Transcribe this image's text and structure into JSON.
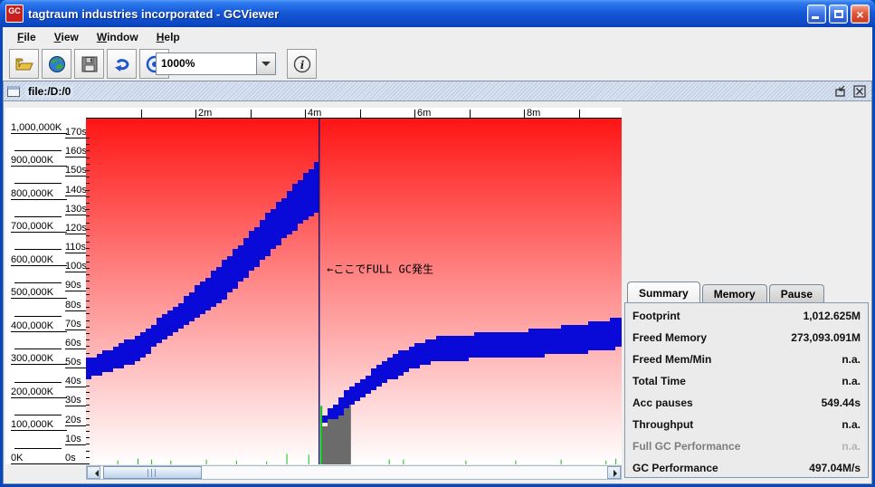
{
  "window": {
    "title": "tagtraum industries incorporated - GCViewer",
    "logo_text": "GC",
    "controls": {
      "minimize": "minimize",
      "maximize": "maximize",
      "close": "close"
    }
  },
  "menu": {
    "items": [
      {
        "label": "File",
        "mnemonic": "F"
      },
      {
        "label": "View",
        "mnemonic": "V"
      },
      {
        "label": "Window",
        "mnemonic": "W"
      },
      {
        "label": "Help",
        "mnemonic": "H"
      }
    ]
  },
  "toolbar": {
    "zoom_value": "1000%",
    "icons": [
      "open-folder-icon",
      "globe-icon",
      "save-icon",
      "refresh-icon",
      "watch-icon",
      "info-icon"
    ]
  },
  "frame": {
    "title": "file:/D:/0"
  },
  "tabs": [
    {
      "label": "Summary",
      "selected": true
    },
    {
      "label": "Memory",
      "selected": false
    },
    {
      "label": "Pause",
      "selected": false
    }
  ],
  "summary": {
    "rows": [
      {
        "label": "Footprint",
        "value": "1,012.625M",
        "muted": false
      },
      {
        "label": "Freed Memory",
        "value": "273,093.091M",
        "muted": false
      },
      {
        "label": "Freed Mem/Min",
        "value": "n.a.",
        "muted": false
      },
      {
        "label": "Total Time",
        "value": "n.a.",
        "muted": false
      },
      {
        "label": "Acc pauses",
        "value": "549.44s",
        "muted": false
      },
      {
        "label": "Throughput",
        "value": "n.a.",
        "muted": false
      },
      {
        "label": "Full GC Performance",
        "value": "n.a.",
        "muted": true
      },
      {
        "label": "GC Performance",
        "value": "497.04M/s",
        "muted": false
      }
    ]
  },
  "chart_data": {
    "type": "area",
    "x_axis": {
      "unit": "minutes",
      "range": [
        0,
        9.8
      ],
      "ticks": [
        {
          "m": 1,
          "label": ""
        },
        {
          "m": 2,
          "label": "2m"
        },
        {
          "m": 3,
          "label": ""
        },
        {
          "m": 4,
          "label": "4m"
        },
        {
          "m": 5,
          "label": ""
        },
        {
          "m": 6,
          "label": "6m"
        },
        {
          "m": 7,
          "label": ""
        },
        {
          "m": 8,
          "label": "8m"
        },
        {
          "m": 9,
          "label": ""
        }
      ]
    },
    "y_axis_memory": {
      "min_k": 0,
      "max_k": 1000000,
      "step_k": 100000,
      "labels": [
        "1,000,000K",
        "900,000K",
        "800,000K",
        "700,000K",
        "600,000K",
        "500,000K",
        "400,000K",
        "300,000K",
        "200,000K",
        "100,000K",
        "0K"
      ]
    },
    "y_axis_seconds": {
      "min_s": 0,
      "max_s": 170,
      "step_s": 10,
      "labels": [
        "170s",
        "160s",
        "150s",
        "140s",
        "130s",
        "120s",
        "110s",
        "100s",
        "90s",
        "80s",
        "70s",
        "60s",
        "50s",
        "40s",
        "30s",
        "20s",
        "10s",
        "0s"
      ]
    },
    "series": [
      {
        "name": "heap-band-before-full-gc",
        "color": "#0909D8",
        "top_mk": [
          [
            0,
            320000
          ],
          [
            0.91,
            389000
          ],
          [
            1.74,
            498000
          ],
          [
            2.56,
            629000
          ],
          [
            3.39,
            777000
          ],
          [
            3.88,
            865000
          ],
          [
            4.21,
            920000
          ],
          [
            4.26,
            930000
          ]
        ],
        "bottom_mk": [
          [
            0,
            257000
          ],
          [
            0.91,
            307000
          ],
          [
            1.74,
            402000
          ],
          [
            2.56,
            498000
          ],
          [
            3.39,
            635000
          ],
          [
            3.88,
            712000
          ],
          [
            4.21,
            758000
          ],
          [
            4.26,
            766000
          ]
        ]
      },
      {
        "name": "heap-band-after-full-gc",
        "color": "#0909D8",
        "top_mk": [
          [
            4.314,
            148000
          ],
          [
            4.71,
            219000
          ],
          [
            5.37,
            307000
          ],
          [
            5.87,
            356000
          ],
          [
            6.36,
            383000
          ],
          [
            7.02,
            394000
          ],
          [
            7.69,
            400000
          ],
          [
            8.35,
            410000
          ],
          [
            9.17,
            427000
          ],
          [
            9.79,
            449000
          ]
        ],
        "bottom_mk": [
          [
            4.314,
            110000
          ],
          [
            4.71,
            153000
          ],
          [
            5.37,
            230000
          ],
          [
            5.87,
            279000
          ],
          [
            6.36,
            307000
          ],
          [
            7.02,
            317000
          ],
          [
            7.69,
            323000
          ],
          [
            8.35,
            328000
          ],
          [
            9.17,
            339000
          ],
          [
            9.79,
            353000
          ]
        ]
      },
      {
        "name": "used-heap-after-full-gc",
        "color": "#6B6B6B",
        "top_mk": [
          [
            4.314,
            120000
          ],
          [
            4.46,
            140000
          ],
          [
            4.58,
            156000
          ],
          [
            4.71,
            170000
          ],
          [
            4.84,
            181000
          ]
        ],
        "baseline_k": 0
      }
    ],
    "events": {
      "full_gc_line_m": 4.26,
      "line_color": "#151578",
      "pause_color": "#10C010",
      "gc_pauses_m_s": [
        [
          0.58,
          2
        ],
        [
          0.95,
          3
        ],
        [
          1.2,
          2.5
        ],
        [
          1.55,
          2
        ],
        [
          2.2,
          2.5
        ],
        [
          2.75,
          2
        ],
        [
          3.3,
          1.5
        ],
        [
          3.67,
          5.5
        ],
        [
          4.07,
          5
        ],
        [
          4.3,
          30.5
        ],
        [
          5.54,
          2.5
        ],
        [
          5.8,
          2.5
        ],
        [
          6.94,
          2
        ],
        [
          7.85,
          2
        ],
        [
          8.68,
          2.5
        ],
        [
          9.5,
          2
        ],
        [
          9.68,
          3
        ]
      ]
    },
    "annotation": {
      "text": "←ここでFULL GC発生",
      "m": 4.35,
      "k": 590000
    }
  }
}
